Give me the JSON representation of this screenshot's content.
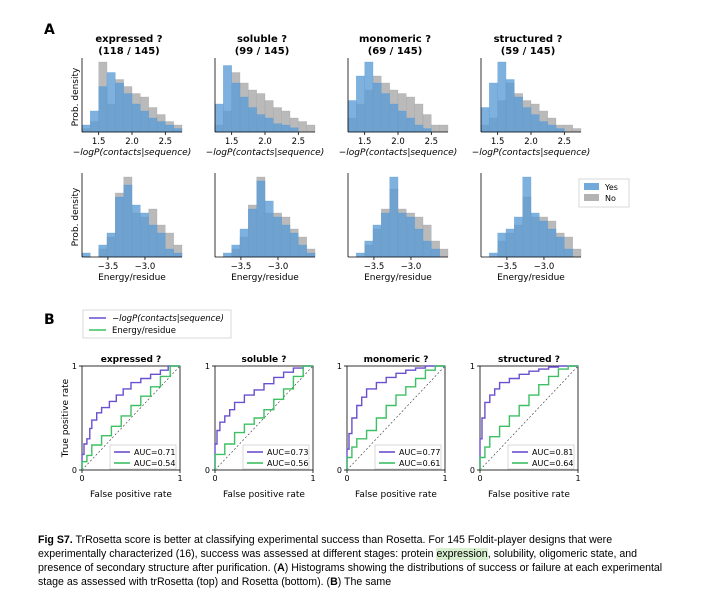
{
  "panel_labels": {
    "a": "A",
    "b": "B"
  },
  "histograms": {
    "ylabel": "Prob. density",
    "legend": [
      {
        "label": "Yes",
        "color": "#5b9bd5"
      },
      {
        "label": "No",
        "color": "#a6a6a6"
      }
    ],
    "top_xlabel": "−logP(contacts|sequence)",
    "bottom_xlabel": "Energy/residue",
    "top_ticks": [
      "1.5",
      "2.0",
      "2.5"
    ],
    "bottom_ticks": [
      "−3.5",
      "−3.0"
    ],
    "columns": [
      {
        "title": "expressed ?",
        "count": "(118 / 145)"
      },
      {
        "title": "soluble ?",
        "count": "(99 / 145)"
      },
      {
        "title": "monomeric ?",
        "count": "(69 / 145)"
      },
      {
        "title": "structured ?",
        "count": "(59 / 145)"
      }
    ]
  },
  "chart_data": [
    {
      "type": "histogram",
      "title": "expressed ?",
      "xlabel": "−logP(contacts|sequence)",
      "ylabel": "Prob. density",
      "xlim": [
        1.25,
        2.75
      ],
      "series": [
        {
          "name": "Yes",
          "values": [
            0.1,
            0.3,
            0.65,
            0.85,
            0.7,
            0.55,
            0.4,
            0.3,
            0.2,
            0.15,
            0.1,
            0.05
          ]
        },
        {
          "name": "No",
          "values": [
            0.05,
            0.15,
            1.0,
            0.4,
            0.75,
            0.65,
            0.55,
            0.5,
            0.35,
            0.25,
            0.15,
            0.1
          ]
        }
      ]
    },
    {
      "type": "histogram",
      "title": "soluble ?",
      "xlabel": "−logP(contacts|sequence)",
      "ylabel": "Prob. density",
      "xlim": [
        1.25,
        2.75
      ],
      "series": [
        {
          "name": "Yes",
          "values": [
            0.4,
            0.95,
            0.7,
            0.5,
            0.35,
            0.25,
            0.2,
            0.12,
            0.1,
            0.06,
            0.0,
            0.0
          ]
        },
        {
          "name": "No",
          "values": [
            0.1,
            0.3,
            0.85,
            0.7,
            0.6,
            0.55,
            0.45,
            0.35,
            0.3,
            0.2,
            0.15,
            0.1
          ]
        }
      ]
    },
    {
      "type": "histogram",
      "title": "monomeric ?",
      "xlabel": "−logP(contacts|sequence)",
      "ylabel": "Prob. density",
      "xlim": [
        1.25,
        2.75
      ],
      "series": [
        {
          "name": "Yes",
          "values": [
            0.45,
            0.8,
            1.0,
            0.7,
            0.55,
            0.4,
            0.3,
            0.2,
            0.1,
            0.05,
            0.0,
            0.0
          ]
        },
        {
          "name": "No",
          "values": [
            0.2,
            0.4,
            0.6,
            0.8,
            0.7,
            0.6,
            0.55,
            0.5,
            0.4,
            0.25,
            0.1,
            0.1
          ]
        }
      ]
    },
    {
      "type": "histogram",
      "title": "structured ?",
      "xlabel": "−logP(contacts|sequence)",
      "ylabel": "Prob. density",
      "xlim": [
        1.25,
        2.75
      ],
      "series": [
        {
          "name": "Yes",
          "values": [
            0.35,
            0.7,
            1.0,
            0.75,
            0.5,
            0.35,
            0.25,
            0.15,
            0.1,
            0.05,
            0.0,
            0.0
          ]
        },
        {
          "name": "No",
          "values": [
            0.1,
            0.2,
            0.45,
            0.7,
            0.55,
            0.45,
            0.4,
            0.3,
            0.2,
            0.1,
            0.1,
            0.05
          ]
        }
      ]
    },
    {
      "type": "histogram",
      "title": "expressed ?",
      "xlabel": "Energy/residue",
      "ylabel": "Prob. density",
      "xlim": [
        -3.85,
        -2.5
      ],
      "series": [
        {
          "name": "Yes",
          "values": [
            0.05,
            0.0,
            0.15,
            0.3,
            0.75,
            0.9,
            0.65,
            0.55,
            0.4,
            0.3,
            0.1,
            0.05
          ]
        },
        {
          "name": "No",
          "values": [
            0.0,
            0.0,
            0.1,
            0.25,
            0.8,
            1.0,
            0.55,
            0.5,
            0.6,
            0.4,
            0.3,
            0.15
          ]
        }
      ]
    },
    {
      "type": "histogram",
      "title": "soluble ?",
      "xlabel": "Energy/residue",
      "ylabel": "Prob. density",
      "xlim": [
        -3.85,
        -2.5
      ],
      "series": [
        {
          "name": "Yes",
          "values": [
            0.0,
            0.05,
            0.15,
            0.35,
            0.6,
            0.95,
            0.7,
            0.5,
            0.4,
            0.3,
            0.15,
            0.05
          ]
        },
        {
          "name": "No",
          "values": [
            0.0,
            0.0,
            0.1,
            0.25,
            0.65,
            1.0,
            0.55,
            0.55,
            0.5,
            0.35,
            0.25,
            0.1
          ]
        }
      ]
    },
    {
      "type": "histogram",
      "title": "monomeric ?",
      "xlabel": "Energy/residue",
      "ylabel": "Prob. density",
      "xlim": [
        -3.85,
        -2.5
      ],
      "series": [
        {
          "name": "Yes",
          "values": [
            0.0,
            0.05,
            0.2,
            0.4,
            0.55,
            1.0,
            0.55,
            0.5,
            0.35,
            0.2,
            0.1,
            0.0
          ]
        },
        {
          "name": "No",
          "values": [
            0.0,
            0.0,
            0.15,
            0.35,
            0.6,
            0.85,
            0.6,
            0.55,
            0.5,
            0.4,
            0.2,
            0.1
          ]
        }
      ]
    },
    {
      "type": "histogram",
      "title": "structured ?",
      "xlabel": "Energy/residue",
      "ylabel": "Prob. density",
      "xlim": [
        -3.85,
        -2.5
      ],
      "series": [
        {
          "name": "Yes",
          "values": [
            0.0,
            0.05,
            0.3,
            0.35,
            0.5,
            1.0,
            0.55,
            0.45,
            0.35,
            0.25,
            0.1,
            0.0
          ]
        },
        {
          "name": "No",
          "values": [
            0.0,
            0.0,
            0.2,
            0.3,
            0.4,
            0.75,
            0.5,
            0.5,
            0.45,
            0.3,
            0.25,
            0.1
          ]
        }
      ]
    },
    {
      "type": "line",
      "title": "expressed ?",
      "xlabel": "False positive rate",
      "ylabel": "True positive rate",
      "xlim": [
        0,
        1
      ],
      "ylim": [
        0,
        1
      ],
      "series": [
        {
          "name": "−logP(contacts|sequence)",
          "auc": "AUC=0.71",
          "x": [
            0,
            0.02,
            0.05,
            0.08,
            0.1,
            0.15,
            0.2,
            0.28,
            0.35,
            0.42,
            0.5,
            0.6,
            0.7,
            0.8,
            0.88,
            0.95,
            1
          ],
          "y": [
            0,
            0.15,
            0.25,
            0.3,
            0.4,
            0.48,
            0.55,
            0.6,
            0.66,
            0.72,
            0.78,
            0.84,
            0.88,
            0.92,
            0.96,
            1.0,
            1
          ]
        },
        {
          "name": "Energy/residue",
          "auc": "AUC=0.54",
          "x": [
            0,
            0.05,
            0.1,
            0.2,
            0.3,
            0.4,
            0.5,
            0.6,
            0.7,
            0.8,
            0.9,
            1
          ],
          "y": [
            0,
            0.08,
            0.14,
            0.24,
            0.33,
            0.42,
            0.52,
            0.62,
            0.71,
            0.8,
            0.9,
            1
          ]
        }
      ]
    },
    {
      "type": "line",
      "title": "soluble ?",
      "xlabel": "False positive rate",
      "ylabel": "True positive rate",
      "xlim": [
        0,
        1
      ],
      "ylim": [
        0,
        1
      ],
      "series": [
        {
          "name": "−logP(contacts|sequence)",
          "auc": "AUC=0.73",
          "x": [
            0,
            0.02,
            0.05,
            0.1,
            0.15,
            0.2,
            0.3,
            0.4,
            0.5,
            0.6,
            0.7,
            0.8,
            0.9,
            1
          ],
          "y": [
            0,
            0.25,
            0.38,
            0.46,
            0.52,
            0.58,
            0.65,
            0.72,
            0.77,
            0.83,
            0.89,
            0.94,
            0.98,
            1
          ]
        },
        {
          "name": "Energy/residue",
          "auc": "AUC=0.56",
          "x": [
            0,
            0.1,
            0.2,
            0.3,
            0.4,
            0.5,
            0.6,
            0.7,
            0.8,
            0.9,
            1
          ],
          "y": [
            0,
            0.15,
            0.25,
            0.36,
            0.44,
            0.5,
            0.58,
            0.68,
            0.78,
            0.9,
            1
          ]
        }
      ]
    },
    {
      "type": "line",
      "title": "monomeric ?",
      "xlabel": "False positive rate",
      "ylabel": "True positive rate",
      "xlim": [
        0,
        1
      ],
      "ylim": [
        0,
        1
      ],
      "series": [
        {
          "name": "−logP(contacts|sequence)",
          "auc": "AUC=0.77",
          "x": [
            0,
            0.02,
            0.05,
            0.1,
            0.15,
            0.2,
            0.3,
            0.4,
            0.5,
            0.6,
            0.7,
            0.8,
            0.9,
            1
          ],
          "y": [
            0,
            0.2,
            0.35,
            0.5,
            0.62,
            0.7,
            0.78,
            0.84,
            0.89,
            0.93,
            0.96,
            0.98,
            1.0,
            1
          ]
        },
        {
          "name": "Energy/residue",
          "auc": "AUC=0.61",
          "x": [
            0,
            0.05,
            0.1,
            0.2,
            0.3,
            0.4,
            0.5,
            0.6,
            0.7,
            0.8,
            0.9,
            1
          ],
          "y": [
            0,
            0.12,
            0.22,
            0.3,
            0.38,
            0.5,
            0.62,
            0.72,
            0.8,
            0.88,
            0.96,
            1
          ]
        }
      ]
    },
    {
      "type": "line",
      "title": "structured ?",
      "xlabel": "False positive rate",
      "ylabel": "True positive rate",
      "xlim": [
        0,
        1
      ],
      "ylim": [
        0,
        1
      ],
      "series": [
        {
          "name": "−logP(contacts|sequence)",
          "auc": "AUC=0.81",
          "x": [
            0,
            0.02,
            0.05,
            0.1,
            0.15,
            0.2,
            0.3,
            0.4,
            0.5,
            0.6,
            0.7,
            0.8,
            0.9,
            1
          ],
          "y": [
            0,
            0.3,
            0.5,
            0.65,
            0.72,
            0.78,
            0.84,
            0.88,
            0.92,
            0.95,
            0.97,
            0.99,
            1.0,
            1
          ]
        },
        {
          "name": "Energy/residue",
          "auc": "AUC=0.64",
          "x": [
            0,
            0.05,
            0.1,
            0.2,
            0.3,
            0.4,
            0.5,
            0.6,
            0.7,
            0.8,
            0.9,
            1
          ],
          "y": [
            0,
            0.12,
            0.22,
            0.32,
            0.42,
            0.52,
            0.62,
            0.72,
            0.82,
            0.9,
            0.97,
            1
          ]
        }
      ]
    }
  ],
  "roc": {
    "legend": [
      {
        "label": "−logP(contacts|sequence)",
        "color": "#6a4fcf"
      },
      {
        "label": "Energy/residue",
        "color": "#3cc062"
      }
    ],
    "xlabel": "False positive rate",
    "ylabel": "True positive rate",
    "ticks": {
      "zero": "0",
      "one": "1"
    }
  },
  "caption": {
    "label": "Fig S7.",
    "t1": " TrRosetta score is better at classifying experimental success than Rosetta. For 145 Foldit-player designs that were experimentally characterized (16), success was assessed at different stages: protein ",
    "highlight": "expression",
    "t2": ", solubility, oligomeric state, and presence of secondary structure after purification. (",
    "ref_a": "A",
    "t3": ") Histograms showing the distributions of success or failure at each experimental stage as assessed with trRosetta (top) and Rosetta (bottom). (",
    "ref_b": "B",
    "t4": ") The same"
  }
}
